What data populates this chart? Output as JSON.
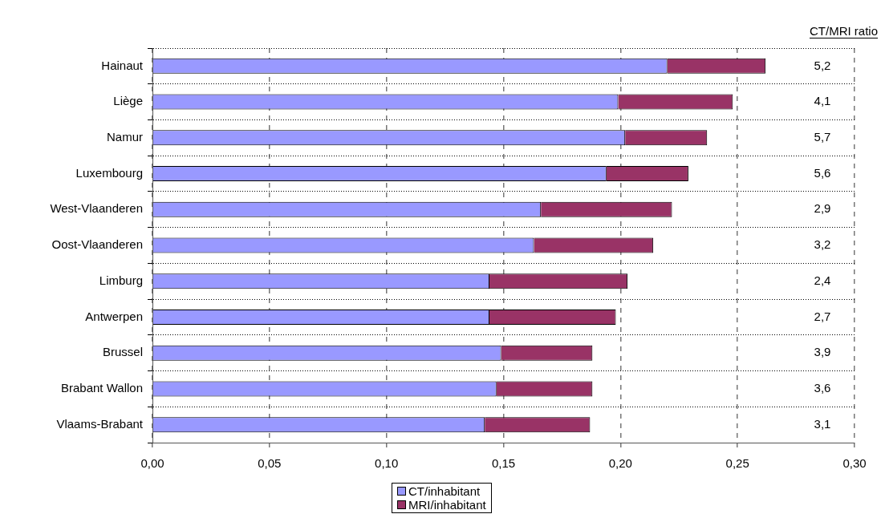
{
  "chart_data": {
    "type": "bar",
    "orientation": "horizontal",
    "stacked": true,
    "categories": [
      "Hainaut",
      "Liège",
      "Namur",
      "Luxembourg",
      "West-Vlaanderen",
      "Oost-Vlaanderen",
      "Limburg",
      "Antwerpen",
      "Brussel",
      "Brabant Wallon",
      "Vlaams-Brabant"
    ],
    "series": [
      {
        "name": "CT/inhabitant",
        "color": "#9999ff",
        "values": [
          0.22,
          0.199,
          0.202,
          0.194,
          0.166,
          0.163,
          0.144,
          0.144,
          0.149,
          0.147,
          0.142
        ]
      },
      {
        "name": "MRI/inhabitant",
        "color": "#993366",
        "values": [
          0.042,
          0.049,
          0.035,
          0.035,
          0.056,
          0.051,
          0.059,
          0.054,
          0.039,
          0.041,
          0.045
        ]
      }
    ],
    "xlim": [
      0,
      0.3
    ],
    "xticks": [
      {
        "value": 0,
        "label": "0,00"
      },
      {
        "value": 0.05,
        "label": "0,05"
      },
      {
        "value": 0.1,
        "label": "0,10"
      },
      {
        "value": 0.15,
        "label": "0,15"
      },
      {
        "value": 0.2,
        "label": "0,20"
      },
      {
        "value": 0.25,
        "label": "0,25"
      },
      {
        "value": 0.3,
        "label": "0,30"
      }
    ],
    "grid": true,
    "legend": "bottom",
    "annotations": [
      "CT/MRI ratio",
      "5,2",
      "4,1",
      "5,7",
      "5,6",
      "2,9",
      "3,2",
      "2,4",
      "2,7",
      "3,9",
      "3,6",
      "3,1"
    ]
  }
}
